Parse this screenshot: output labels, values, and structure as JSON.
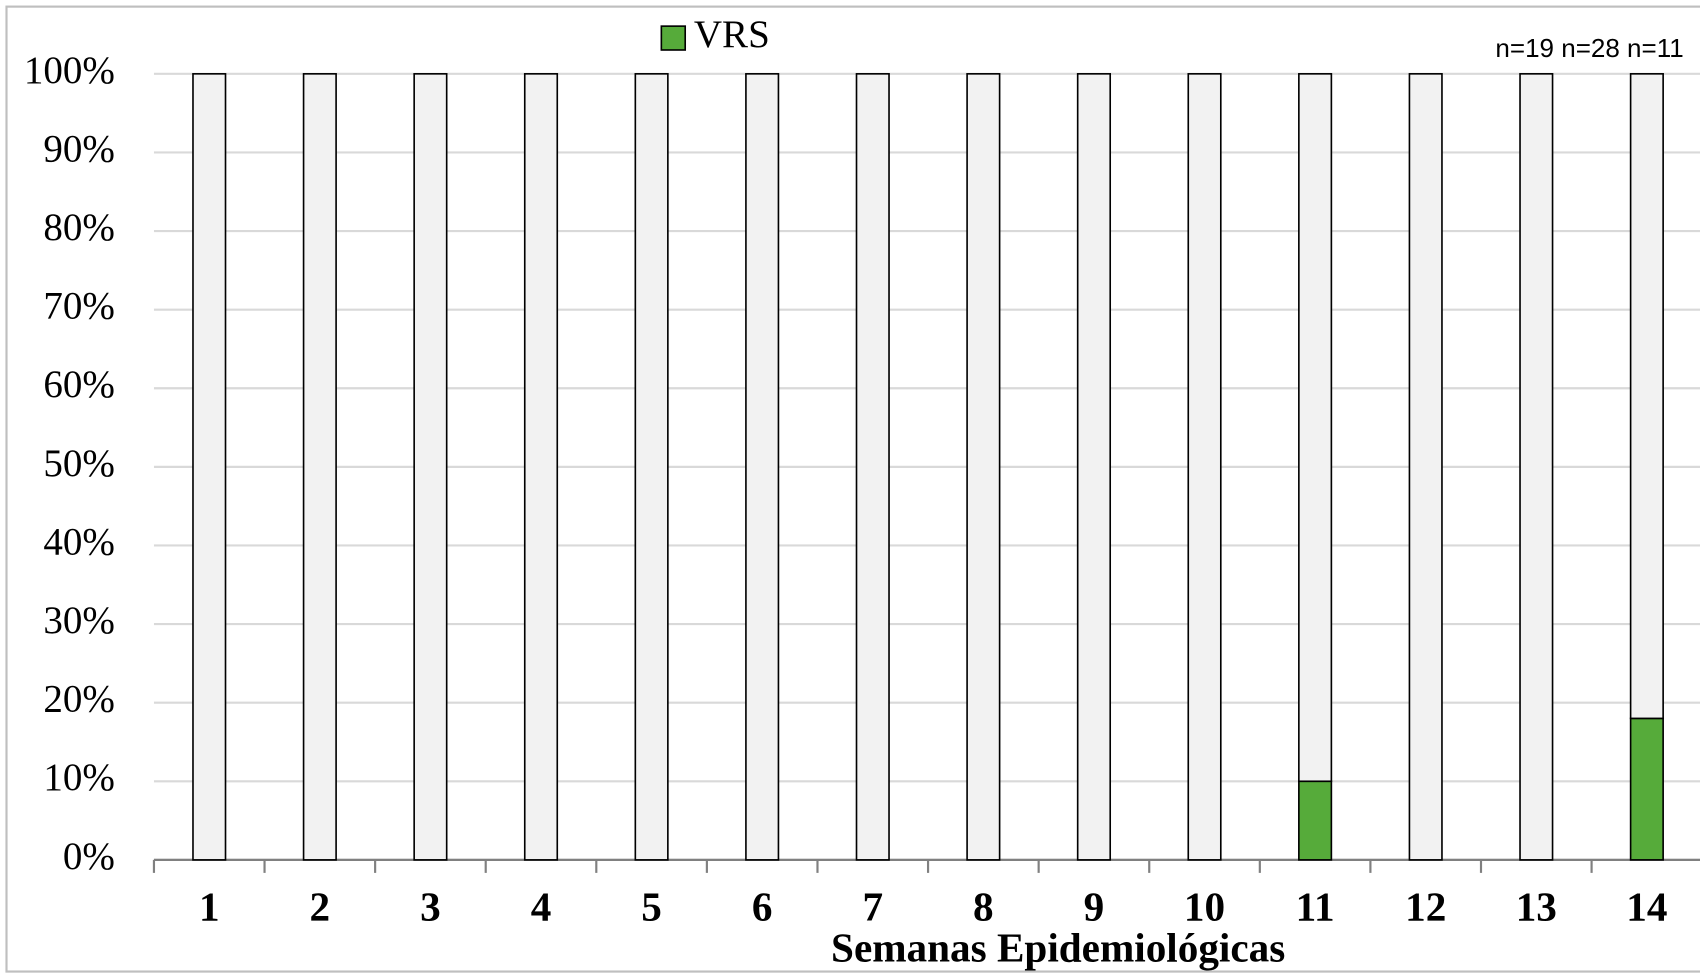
{
  "chart_data": {
    "type": "bar",
    "stacked": true,
    "x_label": "Semanas Epidemiológicas",
    "annotation": "n=19 n=28 n=11",
    "categories": [
      "1",
      "2",
      "3",
      "4",
      "5",
      "6",
      "7",
      "8",
      "9",
      "10",
      "11",
      "12",
      "13",
      "14"
    ],
    "series": [
      {
        "name": "VRS",
        "color": "#56ab3a",
        "values": [
          0,
          0,
          0,
          0,
          0,
          0,
          0,
          0,
          0,
          0,
          10,
          0,
          0,
          18
        ]
      },
      {
        "color": "#f2f2f2",
        "values": [
          100,
          100,
          100,
          100,
          100,
          100,
          100,
          100,
          100,
          100,
          90,
          100,
          100,
          82
        ]
      }
    ],
    "ylim": [
      0,
      100
    ],
    "yticks": [
      {
        "value": 0,
        "label": "0%"
      },
      {
        "value": 10,
        "label": "10%"
      },
      {
        "value": 20,
        "label": "20%"
      },
      {
        "value": 30,
        "label": "30%"
      },
      {
        "value": 40,
        "label": "40%"
      },
      {
        "value": 50,
        "label": "50%"
      },
      {
        "value": 60,
        "label": "60%"
      },
      {
        "value": 70,
        "label": "70%"
      },
      {
        "value": 80,
        "label": "80%"
      },
      {
        "value": 90,
        "label": "90%"
      },
      {
        "value": 100,
        "label": "100%"
      }
    ],
    "grid": true,
    "legend": "top"
  }
}
